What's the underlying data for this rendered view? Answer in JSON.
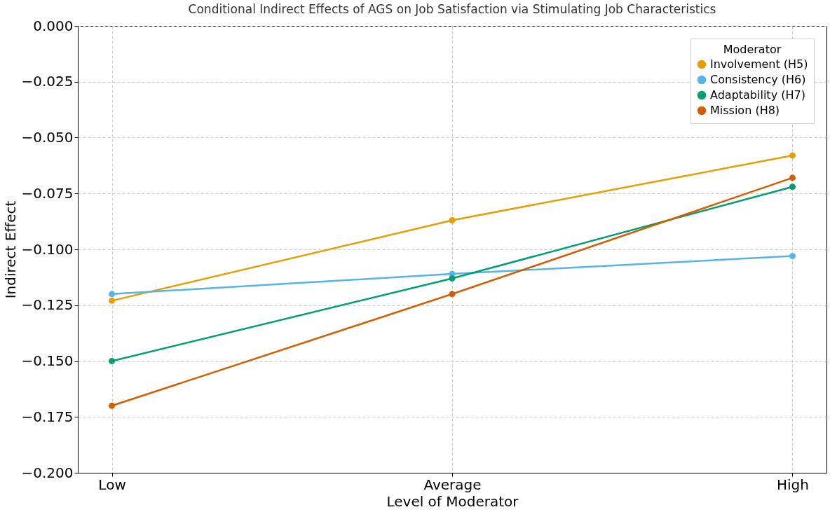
{
  "chart_data": {
    "type": "line",
    "title": "Conditional Indirect Effects of AGS on Job Satisfaction via Stimulating Job Characteristics",
    "xlabel": "Level of Moderator",
    "ylabel": "Indirect Effect",
    "legend_title": "Moderator",
    "categories": [
      "Low",
      "Average",
      "High"
    ],
    "series": [
      {
        "name": "Involvement (H5)",
        "color": "#e69f00",
        "values": [
          -0.123,
          -0.087,
          -0.058
        ]
      },
      {
        "name": "Consistency (H6)",
        "color": "#56b4e9",
        "values": [
          -0.12,
          -0.111,
          -0.103
        ]
      },
      {
        "name": "Adaptability (H7)",
        "color": "#009e73",
        "values": [
          -0.15,
          -0.113,
          -0.072
        ]
      },
      {
        "name": "Mission (H8)",
        "color": "#d55e00",
        "values": [
          -0.17,
          -0.12,
          -0.068
        ]
      }
    ],
    "ylim": [
      -0.2,
      0.0
    ],
    "yticks": [
      {
        "value": -0.2,
        "label": "−0.200"
      },
      {
        "value": -0.175,
        "label": "−0.175"
      },
      {
        "value": -0.15,
        "label": "−0.150"
      },
      {
        "value": -0.125,
        "label": "−0.125"
      },
      {
        "value": -0.1,
        "label": "−0.100"
      },
      {
        "value": -0.075,
        "label": "−0.075"
      },
      {
        "value": -0.05,
        "label": "−0.050"
      },
      {
        "value": -0.025,
        "label": "−0.025"
      },
      {
        "value": 0.0,
        "label": "0.000"
      }
    ],
    "grid": true,
    "legend": "top right",
    "marker": "circle",
    "line_style": "solid"
  }
}
